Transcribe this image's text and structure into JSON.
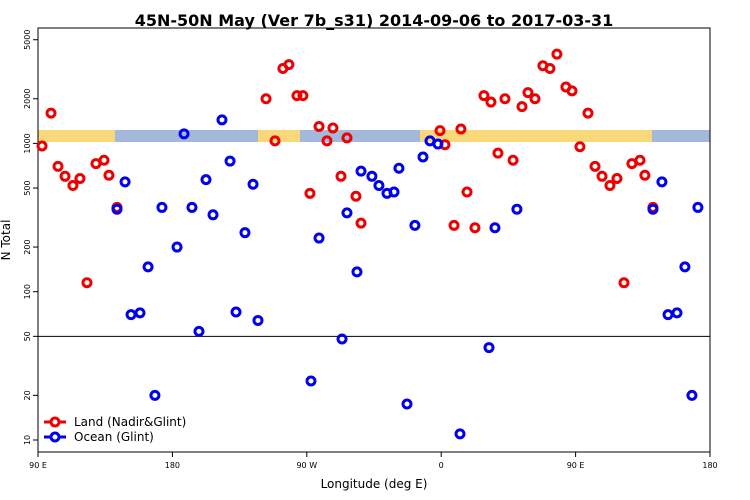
{
  "chart_data": {
    "type": "scatter",
    "title": "45N-50N May (Ver 7b_s31)   2014-09-06 to 2017-03-31",
    "xlabel": "Longitude (deg E)",
    "ylabel": "N Total",
    "xlim": [
      90,
      540
    ],
    "ylim": [
      8.3,
      6000
    ],
    "log_y": true,
    "hline": 50,
    "legend": "lower left",
    "xticks": [
      {
        "value": 90,
        "label": "90 E"
      },
      {
        "value": 180,
        "label": "180"
      },
      {
        "value": 270,
        "label": "90 W"
      },
      {
        "value": 360,
        "label": "0"
      },
      {
        "value": 450,
        "label": "90 E"
      },
      {
        "value": 540,
        "label": "180"
      }
    ],
    "yticks": [
      10,
      20,
      50,
      100,
      200,
      500,
      1000,
      2000,
      5000
    ],
    "series": [
      {
        "name": "Land (Nadir&Glint)",
        "color": "#ee0000",
        "x": [
          92.7,
          98.7,
          103.4,
          108.1,
          113.4,
          118.1,
          122.8,
          128.8,
          134.2,
          137.5,
          142.9,
          242.7,
          248.7,
          254.0,
          258.0,
          263.4,
          267.4,
          272.1,
          278.2,
          283.5,
          287.5,
          292.9,
          296.9,
          302.9,
          306.3,
          359.2,
          362.5,
          368.6,
          373.2,
          377.3,
          382.6,
          388.6,
          393.3,
          398.0,
          402.7,
          408.1,
          414.1,
          418.1,
          422.8,
          428.1,
          432.8,
          437.5,
          443.5,
          447.6,
          452.9,
          458.3,
          463.0,
          467.7,
          473.0,
          477.7,
          482.4,
          487.7,
          493.1,
          496.4,
          501.8
        ],
        "values": [
          960,
          1600,
          700,
          600,
          520,
          580,
          115,
          730,
          770,
          610,
          370,
          2000,
          1040,
          3200,
          3400,
          2100,
          2100,
          460,
          1300,
          1040,
          1270,
          600,
          1090,
          440,
          290,
          1220,
          980,
          280,
          1250,
          470,
          270,
          2100,
          1900,
          860,
          2000,
          770,
          1770,
          2200,
          2000,
          3340,
          3200,
          4000,
          2400,
          2260,
          950,
          1600,
          700,
          600,
          520,
          580,
          115,
          730,
          770,
          610,
          370
        ]
      },
      {
        "name": "Ocean (Glint)",
        "color": "#0000ee",
        "x": [
          142.9,
          148.3,
          152.3,
          158.3,
          163.7,
          168.3,
          173.0,
          183.1,
          187.8,
          193.1,
          197.8,
          202.5,
          207.2,
          213.2,
          218.6,
          222.6,
          228.6,
          234.0,
          237.3,
          272.8,
          278.2,
          293.6,
          296.9,
          303.6,
          306.3,
          313.6,
          318.3,
          323.7,
          328.4,
          331.7,
          337.1,
          342.4,
          347.8,
          352.5,
          357.8,
          372.6,
          392.0,
          396.0,
          410.7,
          501.8,
          507.8,
          511.9,
          517.9,
          523.2,
          527.9,
          531.9
        ],
        "values": [
          360,
          550,
          70,
          72,
          147,
          20,
          370,
          200,
          1160,
          370,
          54,
          570,
          330,
          1440,
          760,
          73,
          250,
          530,
          64,
          25,
          230,
          48,
          340,
          136,
          650,
          600,
          520,
          460,
          470,
          680,
          17.5,
          280,
          810,
          1040,
          990,
          11,
          42,
          270,
          360,
          360,
          550,
          70,
          72,
          147,
          20,
          370
        ]
      }
    ]
  }
}
